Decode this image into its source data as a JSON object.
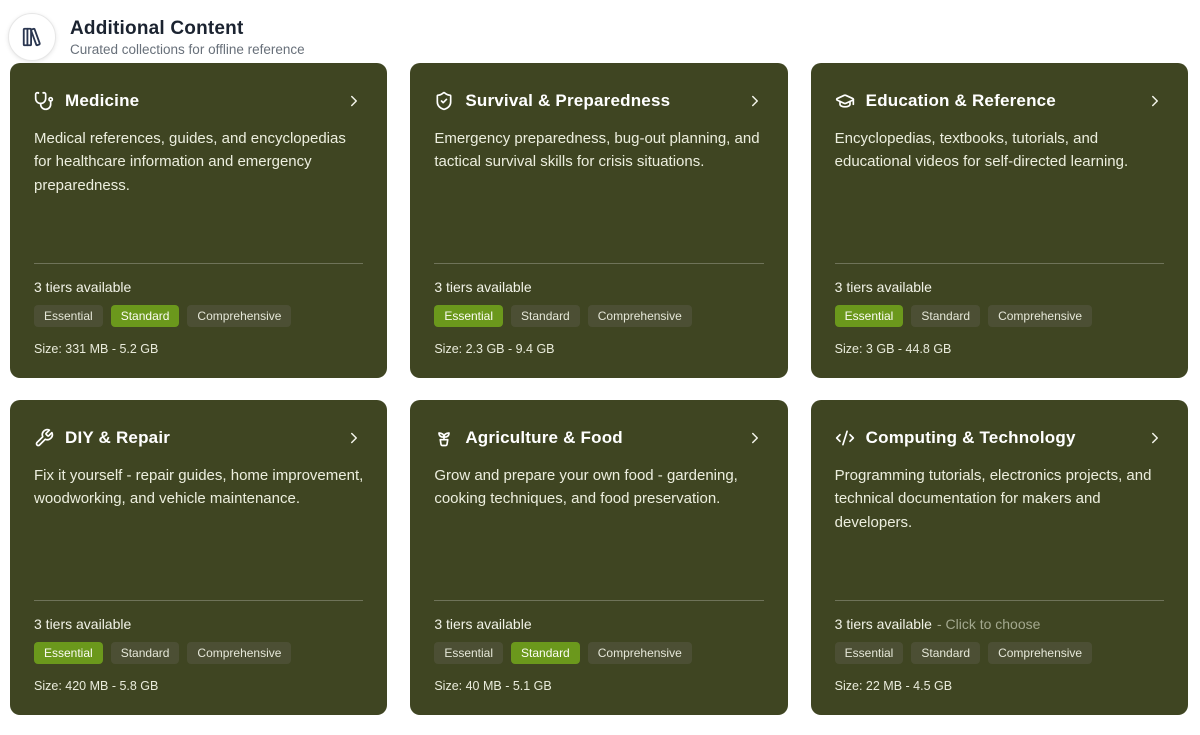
{
  "page": {
    "title": "Additional Content",
    "subtitle": "Curated collections for offline reference",
    "header_icon": "library-icon"
  },
  "colors": {
    "card_background": "#3f4522",
    "active_tier_background": "#6b981c",
    "inactive_tier_background": "#4c4f34"
  },
  "cards": [
    {
      "id": "medicine",
      "icon": "stethoscope-icon",
      "title": "Medicine",
      "description": "Medical references, guides, and encyclopedias for healthcare information and emergency preparedness.",
      "tiers_label": "3 tiers available",
      "tiers_hint": "",
      "tiers": [
        "Essential",
        "Standard",
        "Comprehensive"
      ],
      "selected_tier": "Standard",
      "size_text": "Size: 331 MB - 5.2 GB"
    },
    {
      "id": "survival",
      "icon": "shield-check-icon",
      "title": "Survival & Preparedness",
      "description": "Emergency preparedness, bug-out planning, and tactical survival skills for crisis situations.",
      "tiers_label": "3 tiers available",
      "tiers_hint": "",
      "tiers": [
        "Essential",
        "Standard",
        "Comprehensive"
      ],
      "selected_tier": "Essential",
      "size_text": "Size: 2.3 GB - 9.4 GB"
    },
    {
      "id": "education",
      "icon": "graduation-cap-icon",
      "title": "Education & Reference",
      "description": "Encyclopedias, textbooks, tutorials, and educational videos for self-directed learning.",
      "tiers_label": "3 tiers available",
      "tiers_hint": "",
      "tiers": [
        "Essential",
        "Standard",
        "Comprehensive"
      ],
      "selected_tier": "Essential",
      "size_text": "Size: 3 GB - 44.8 GB"
    },
    {
      "id": "diy-repair",
      "icon": "wrench-icon",
      "title": "DIY & Repair",
      "description": "Fix it yourself - repair guides, home improvement, woodworking, and vehicle maintenance.",
      "tiers_label": "3 tiers available",
      "tiers_hint": "",
      "tiers": [
        "Essential",
        "Standard",
        "Comprehensive"
      ],
      "selected_tier": "Essential",
      "size_text": "Size: 420 MB - 5.8 GB"
    },
    {
      "id": "agriculture",
      "icon": "sprout-icon",
      "title": "Agriculture & Food",
      "description": "Grow and prepare your own food - gardening, cooking techniques, and food preservation.",
      "tiers_label": "3 tiers available",
      "tiers_hint": "",
      "tiers": [
        "Essential",
        "Standard",
        "Comprehensive"
      ],
      "selected_tier": "Standard",
      "size_text": "Size: 40 MB - 5.1 GB"
    },
    {
      "id": "computing",
      "icon": "code-icon",
      "title": "Computing & Technology",
      "description": "Programming tutorials, electronics projects, and technical documentation for makers and developers.",
      "tiers_label": "3 tiers available",
      "tiers_hint": "- Click to choose",
      "tiers": [
        "Essential",
        "Standard",
        "Comprehensive"
      ],
      "selected_tier": "",
      "size_text": "Size: 22 MB - 4.5 GB"
    }
  ]
}
